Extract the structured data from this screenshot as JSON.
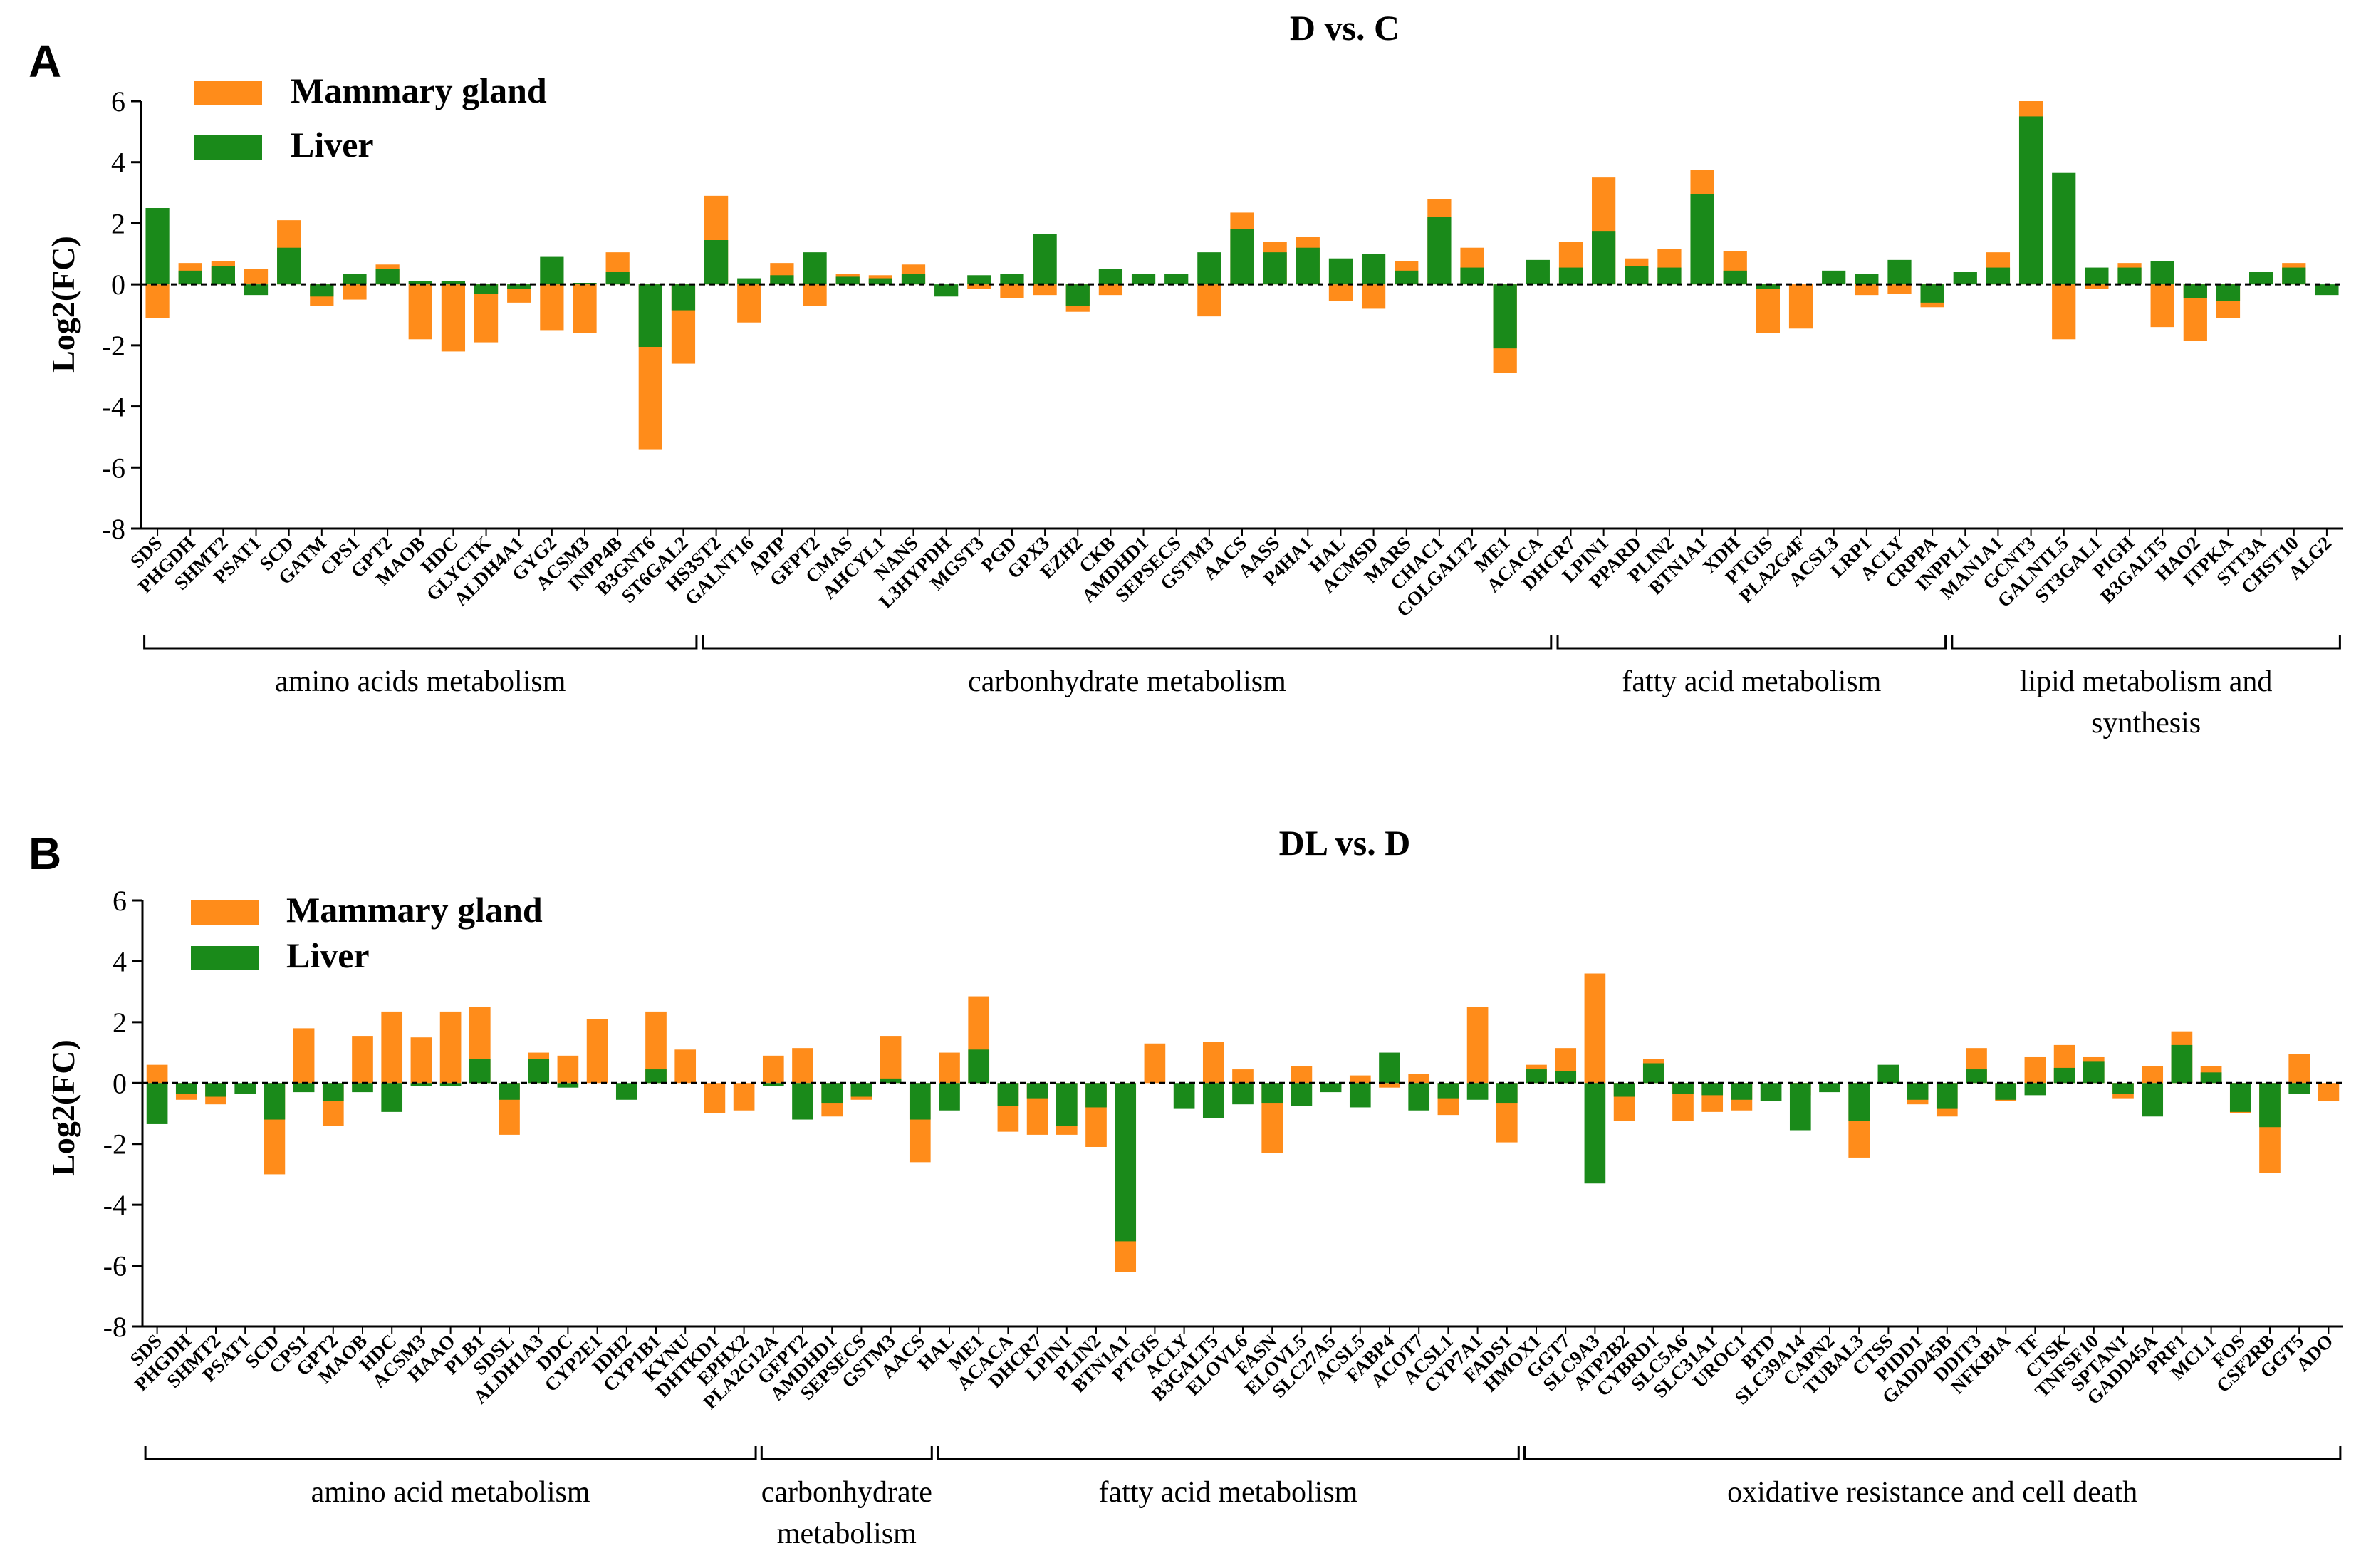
{
  "chart_data": [
    {
      "panel": "A",
      "type": "bar",
      "title": "D vs. C",
      "ylabel": "Log2(FC)",
      "ylim": [
        -8,
        6
      ],
      "yticks": [
        6,
        4,
        2,
        0,
        -2,
        -4,
        -6,
        -8
      ],
      "legend": {
        "placement": "top-left"
      },
      "series": [
        {
          "name": "Mammary gland",
          "color": "#ff8c1a"
        },
        {
          "name": "Liver",
          "color": "#1a8a1a"
        }
      ],
      "categories": [
        "SDS",
        "PHGDH",
        "SHMT2",
        "PSAT1",
        "SCD",
        "GATM",
        "CPS1",
        "GPT2",
        "MAOB",
        "HDC",
        "GLYCTK",
        "ALDH4A1",
        "GYG2",
        "ACSM3",
        "INPP4B",
        "B3GNT6",
        "ST6GAL2",
        "HS3ST2",
        "GALNT16",
        "APIP",
        "GFPT2",
        "CMAS",
        "AHCYL1",
        "NANS",
        "L3HYPDH",
        "MGST3",
        "PGD",
        "GPX3",
        "EZH2",
        "CKB",
        "AMDHD1",
        "SEPSECS",
        "GSTM3",
        "AACS",
        "AASS",
        "P4HA1",
        "HAL",
        "ACMSD",
        "MARS",
        "CHAC1",
        "COLGALT2",
        "ME1",
        "ACACA",
        "DHCR7",
        "LPIN1",
        "PPARD",
        "PLIN2",
        "BTN1A1",
        "XDH",
        "PTGIS",
        "PLA2G4F",
        "ACSL3",
        "LRP1",
        "ACLY",
        "CRPPA",
        "INPPL1",
        "MAN1A1",
        "GCNT3",
        "GALNTL5",
        "ST3GAL1",
        "PIGH",
        "B3GALT5",
        "HAO2",
        "ITPKA",
        "STT3A",
        "CHST10",
        "ALG2"
      ],
      "mammary": [
        -1.1,
        0.7,
        0.75,
        0.5,
        2.1,
        -0.7,
        -0.5,
        0.65,
        -1.8,
        -2.2,
        -1.9,
        -0.6,
        -1.5,
        -1.6,
        1.05,
        -5.4,
        -2.6,
        2.9,
        -1.25,
        0.7,
        -0.7,
        0.35,
        0.3,
        0.65,
        0.0,
        -0.15,
        -0.45,
        -0.35,
        -0.9,
        -0.35,
        0.0,
        0.0,
        -1.05,
        2.35,
        1.4,
        1.55,
        -0.55,
        -0.8,
        0.75,
        2.8,
        1.2,
        -2.9,
        0.0,
        1.4,
        3.5,
        0.85,
        1.15,
        3.75,
        1.1,
        -1.6,
        -1.45,
        0.0,
        -0.35,
        -0.3,
        -0.75,
        0.0,
        1.05,
        6.0,
        -1.8,
        -0.15,
        0.7,
        -1.4,
        -1.85,
        -1.1,
        0.0,
        0.7,
        0.0
      ],
      "liver": [
        2.5,
        0.45,
        0.6,
        -0.35,
        1.2,
        -0.4,
        0.35,
        0.5,
        0.1,
        0.1,
        -0.3,
        -0.15,
        0.9,
        0.05,
        0.4,
        -2.05,
        -0.85,
        1.45,
        0.2,
        0.3,
        1.05,
        0.25,
        0.2,
        0.35,
        -0.4,
        0.3,
        0.35,
        1.65,
        -0.7,
        0.5,
        0.35,
        0.35,
        1.05,
        1.8,
        1.05,
        1.2,
        0.85,
        1.0,
        0.45,
        2.2,
        0.55,
        -2.1,
        0.8,
        0.55,
        1.75,
        0.6,
        0.55,
        2.95,
        0.45,
        -0.15,
        0.0,
        0.45,
        0.35,
        0.8,
        -0.6,
        0.4,
        0.55,
        5.5,
        3.65,
        0.55,
        0.55,
        0.75,
        -0.45,
        -0.55,
        0.4,
        0.55,
        -0.35
      ],
      "groups": [
        {
          "lines": [
            "amino acids metabolism"
          ],
          "from": "SDS",
          "to": "ST6GAL2"
        },
        {
          "lines": [
            "carbonhydrate metabolism"
          ],
          "from": "HS3ST2",
          "to": "ACACA"
        },
        {
          "lines": [
            "fatty acid metabolism"
          ],
          "from": "DHCR7",
          "to": "CRPPA"
        },
        {
          "lines": [
            "lipid metabolism and",
            "synthesis"
          ],
          "from": "INPPL1",
          "to": "ALG2"
        }
      ]
    },
    {
      "panel": "B",
      "type": "bar",
      "title": "DL vs. D",
      "ylabel": "Log2(FC)",
      "ylim": [
        -8,
        6
      ],
      "yticks": [
        6,
        4,
        2,
        0,
        -2,
        -4,
        -6,
        -8
      ],
      "legend": {
        "placement": "top-left"
      },
      "series": [
        {
          "name": "Mammary gland",
          "color": "#ff8c1a"
        },
        {
          "name": "Liver",
          "color": "#1a8a1a"
        }
      ],
      "categories": [
        "SDS",
        "PHGDH",
        "SHMT2",
        "PSAT1",
        "SCD",
        "CPS1",
        "GPT2",
        "MAOB",
        "HDC",
        "ACSM3",
        "HAAO",
        "PLB1",
        "SDSL",
        "ALDH1A3",
        "DDC",
        "CYP2E1",
        "IDH2",
        "CYP1B1",
        "KYNU",
        "DHTKD1",
        "EPHX2",
        "PLA2G12A",
        "GFPT2",
        "AMDHD1",
        "SEPSECS",
        "GSTM3",
        "AACS",
        "HAL",
        "ME1",
        "ACACA",
        "DHCR7",
        "LPIN1",
        "PLIN2",
        "BTN1A1",
        "PTGIS",
        "ACLY",
        "B3GALT5",
        "ELOVL6",
        "FASN",
        "ELOVL5",
        "SLC27A5",
        "ACSL5",
        "FABP4",
        "ACOT7",
        "ACSL1",
        "CYP7A1",
        "FADS1",
        "HMOX1",
        "GGT7",
        "SLC9A3",
        "ATP2B2",
        "CYBRD1",
        "SLC5A6",
        "SLC31A1",
        "UROC1",
        "BTD",
        "SLC39A14",
        "CAPN2",
        "TUBAL3",
        "CTSS",
        "PIDD1",
        "GADD45B",
        "DDIT3",
        "NFKBIA",
        "TF",
        "CTSK",
        "TNFSF10",
        "SPTAN1",
        "GADD45A",
        "PRF1",
        "MCL1",
        "FOS",
        "CSF2RB",
        "GGT5",
        "ADO"
      ],
      "mammary": [
        0.6,
        -0.55,
        -0.7,
        0.0,
        -3.0,
        1.8,
        -1.4,
        1.55,
        2.35,
        1.5,
        2.35,
        2.5,
        -1.7,
        1.0,
        0.9,
        2.1,
        0.0,
        2.35,
        1.1,
        -1.0,
        -0.9,
        0.9,
        1.15,
        -1.1,
        -0.55,
        1.55,
        -2.6,
        1.0,
        2.85,
        -1.6,
        -1.7,
        -1.7,
        -2.1,
        -6.2,
        1.3,
        0.0,
        1.35,
        0.45,
        -2.3,
        0.55,
        0.0,
        0.25,
        -0.15,
        0.3,
        -1.05,
        2.5,
        -1.95,
        0.6,
        1.15,
        3.6,
        -1.25,
        0.8,
        -1.25,
        -0.95,
        -0.9,
        0.0,
        -0.4,
        0.0,
        -2.45,
        0.0,
        -0.7,
        -1.1,
        1.15,
        -0.6,
        0.85,
        1.25,
        0.85,
        -0.5,
        0.55,
        1.7,
        0.55,
        -1.0,
        -2.95,
        0.95,
        -0.6
      ],
      "liver": [
        -1.35,
        -0.35,
        -0.45,
        -0.35,
        -1.2,
        -0.3,
        -0.6,
        -0.3,
        -0.95,
        -0.1,
        -0.1,
        0.8,
        -0.55,
        0.8,
        -0.15,
        0.0,
        -0.55,
        0.45,
        0.0,
        0.0,
        0.0,
        -0.1,
        -1.2,
        -0.65,
        -0.45,
        0.15,
        -1.2,
        -0.9,
        1.1,
        -0.75,
        -0.5,
        -1.4,
        -0.8,
        -5.2,
        0.0,
        -0.85,
        -1.15,
        -0.7,
        -0.65,
        -0.75,
        -0.3,
        -0.8,
        1.0,
        -0.9,
        -0.5,
        -0.55,
        -0.65,
        0.45,
        0.4,
        -3.3,
        -0.45,
        0.65,
        -0.35,
        -0.4,
        -0.55,
        -0.6,
        -1.55,
        -0.3,
        -1.25,
        0.6,
        -0.55,
        -0.85,
        0.45,
        -0.55,
        -0.4,
        0.5,
        0.7,
        -0.35,
        -1.1,
        1.25,
        0.35,
        -0.95,
        -1.45,
        -0.35,
        0.0
      ],
      "groups": [
        {
          "lines": [
            "amino acid metabolism"
          ],
          "from": "SDS",
          "to": "EPHX2"
        },
        {
          "lines": [
            "carbonhydrate",
            "metabolism"
          ],
          "from": "PLA2G12A",
          "to": "AACS"
        },
        {
          "lines": [
            "fatty acid metabolism"
          ],
          "from": "HAL",
          "to": "FADS1"
        },
        {
          "lines": [
            "oxidative resistance and cell death"
          ],
          "from": "HMOX1",
          "to": "ADO"
        }
      ]
    }
  ]
}
